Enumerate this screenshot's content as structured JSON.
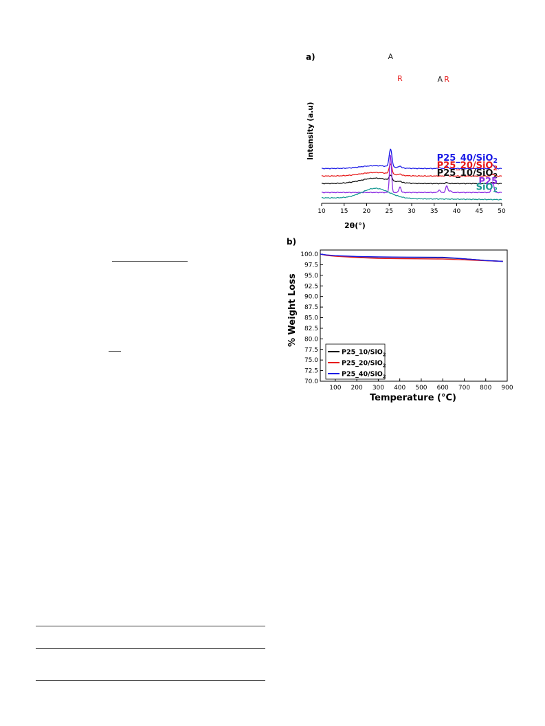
{
  "chart_data": [
    {
      "type": "line",
      "panel_label": "a)",
      "xlabel": "2θ(°)",
      "ylabel": "Intensity (a.u)",
      "xlim": [
        10,
        50
      ],
      "x_ticks": [
        "10",
        "15",
        "20",
        "25",
        "30",
        "35",
        "40",
        "45",
        "50"
      ],
      "grid": false,
      "legend": "labels placed next to each curve",
      "series": [
        {
          "name": "P25_40/SiO",
          "sub": "2",
          "color": "#1a1ae6",
          "offset": 4.1,
          "family": "comp",
          "broad": 0.4,
          "peaks": [
            [
              25.3,
              2.5,
              0.3
            ],
            [
              27.4,
              0.25,
              0.25
            ],
            [
              36.1,
              0.12,
              0.25
            ],
            [
              37.8,
              0.3,
              0.3
            ],
            [
              48.0,
              0.55,
              0.3
            ]
          ]
        },
        {
          "name": "P25_20/SiO",
          "sub": "2",
          "color": "#e61a1a",
          "offset": 3.05,
          "family": "comp",
          "broad": 0.5,
          "peaks": [
            [
              25.3,
              1.4,
              0.3
            ],
            [
              27.4,
              0.18,
              0.25
            ],
            [
              37.8,
              0.15,
              0.3
            ],
            [
              48.0,
              0.25,
              0.3
            ]
          ]
        },
        {
          "name": "P25_10/SiO",
          "sub": "2",
          "color": "#111111",
          "offset": 2.0,
          "family": "comp",
          "broad": 0.75,
          "peaks": [
            [
              25.3,
              0.75,
              0.3
            ],
            [
              27.4,
              0.15,
              0.25
            ],
            [
              37.8,
              0.12,
              0.3
            ],
            [
              48.0,
              0.18,
              0.3
            ]
          ]
        },
        {
          "name": "P25",
          "sub": "",
          "color": "#8a2be2",
          "offset": 0.75,
          "family": "p25",
          "broad": 0,
          "peaks": [
            [
              25.3,
              5.3,
              0.22
            ],
            [
              27.4,
              0.8,
              0.22
            ],
            [
              36.1,
              0.35,
              0.22
            ],
            [
              37.8,
              0.9,
              0.25
            ],
            [
              38.6,
              0.25,
              0.2
            ],
            [
              48.0,
              1.5,
              0.25
            ]
          ]
        },
        {
          "name": "SiO",
          "sub": "2",
          "color": "#1a9a94",
          "offset": 0.0,
          "family": "sio2",
          "broad": 1.4,
          "peaks": []
        }
      ],
      "annotations": [
        {
          "text": "A",
          "x": 25.3,
          "color": "#222222"
        },
        {
          "text": "R",
          "x": 27.4,
          "color": "#e61a1a"
        },
        {
          "text": "A",
          "x": 36.3,
          "color": "#222222"
        },
        {
          "text": "R",
          "x": 37.8,
          "color": "#e61a1a"
        }
      ]
    },
    {
      "type": "line",
      "panel_label": "b)",
      "xlabel": "Temperature (°C)",
      "ylabel": "% Weight Loss",
      "xlim": [
        30,
        900
      ],
      "ylim": [
        70.0,
        100.0
      ],
      "x_ticks": [
        100,
        200,
        300,
        400,
        500,
        600,
        700,
        800,
        900
      ],
      "y_ticks": [
        "70.0",
        "72.5",
        "75.0",
        "77.5",
        "80.0",
        "82.5",
        "85.0",
        "87.5",
        "90.0",
        "92.5",
        "95.0",
        "97.5",
        "100.0"
      ],
      "grid": false,
      "legend": "bottom-left",
      "series": [
        {
          "name": "P25_10/SiO",
          "sub": "2",
          "color": "#111111",
          "x": [
            30,
            60,
            100,
            200,
            300,
            400,
            500,
            600,
            650,
            700,
            750,
            800,
            880
          ],
          "y": [
            100.0,
            99.75,
            99.6,
            99.4,
            99.3,
            99.25,
            99.2,
            99.15,
            99.05,
            98.9,
            98.7,
            98.5,
            98.3
          ]
        },
        {
          "name": "P25_20/SiO",
          "sub": "2",
          "color": "#e61a1a",
          "x": [
            30,
            60,
            100,
            200,
            300,
            400,
            500,
            600,
            650,
            700,
            750,
            800,
            880
          ],
          "y": [
            100.0,
            99.7,
            99.5,
            99.2,
            99.0,
            98.95,
            98.9,
            98.85,
            98.75,
            98.65,
            98.55,
            98.45,
            98.3
          ]
        },
        {
          "name": "P25_40/SiO",
          "sub": "2",
          "color": "#1a1ae6",
          "x": [
            30,
            60,
            100,
            200,
            300,
            400,
            500,
            600,
            650,
            700,
            750,
            800,
            880
          ],
          "y": [
            100.0,
            99.8,
            99.65,
            99.45,
            99.35,
            99.3,
            99.28,
            99.25,
            99.1,
            98.9,
            98.7,
            98.5,
            98.3
          ]
        }
      ]
    }
  ]
}
